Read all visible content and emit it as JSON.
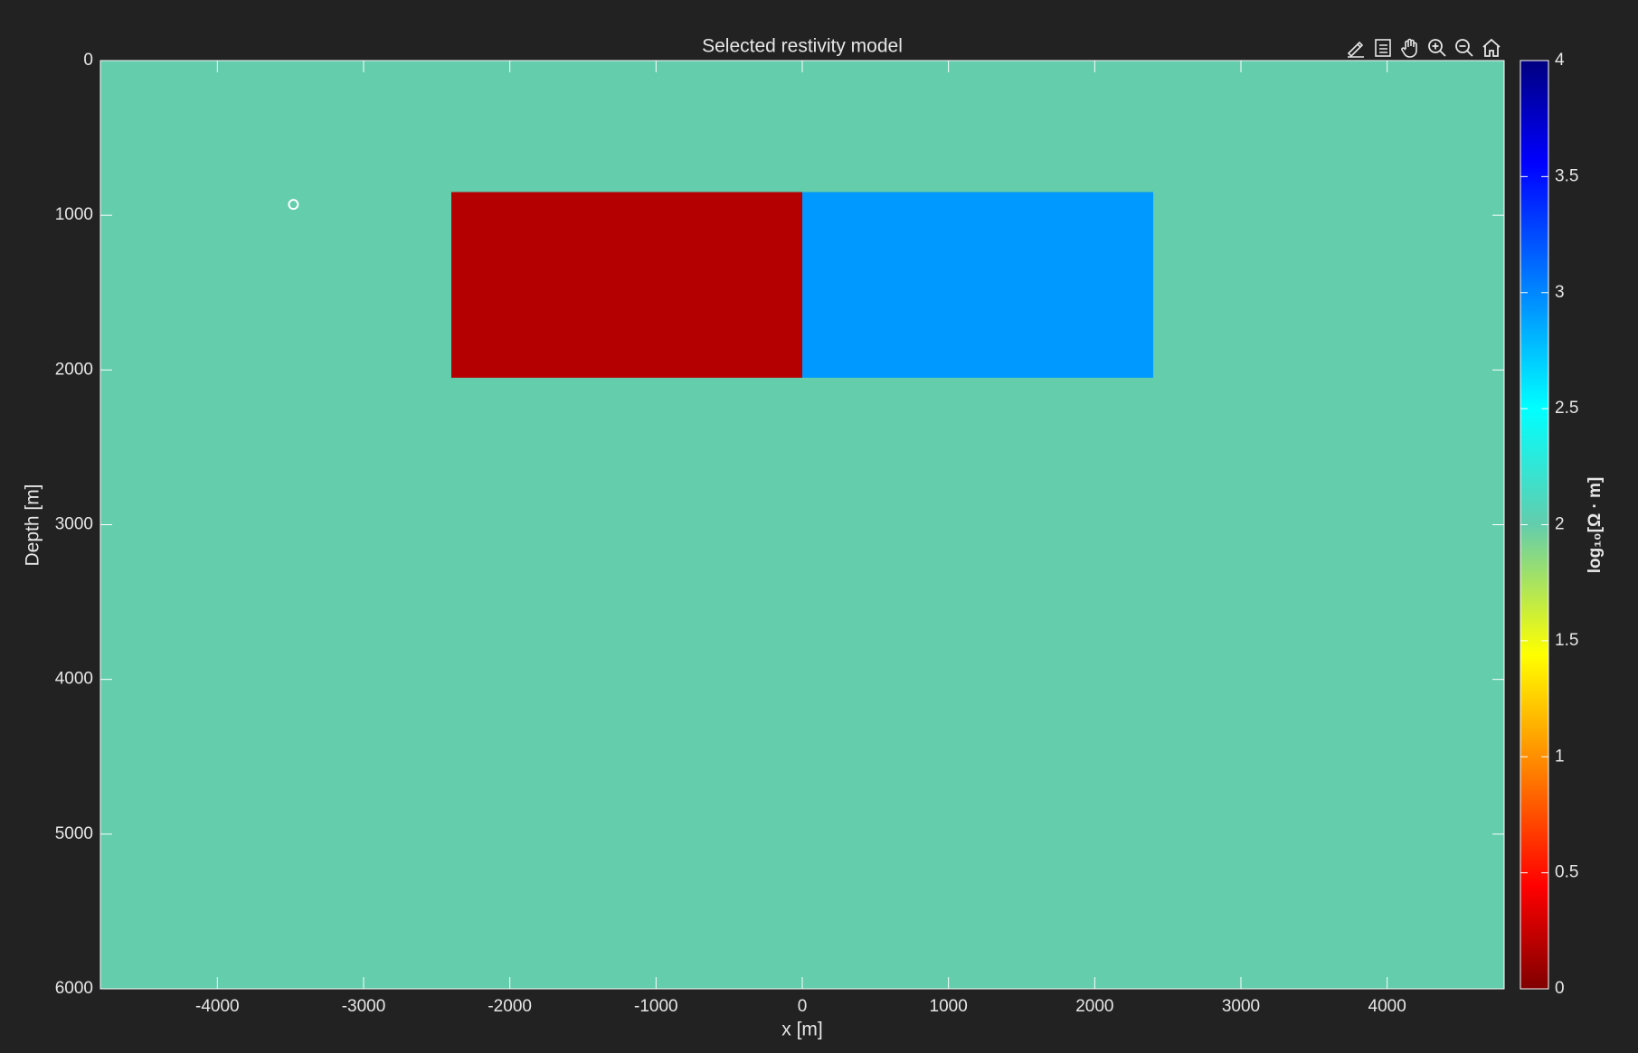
{
  "toolbar": {
    "icons": [
      "brush-edit-icon",
      "legend-toggle-icon",
      "pan-hand-icon",
      "zoom-in-icon",
      "zoom-out-icon",
      "home-icon"
    ]
  },
  "colors": {
    "background": "#222222",
    "text": "#e6e6e6",
    "axis": "#ffffff",
    "marker": "#ffffff"
  },
  "chart_data": {
    "type": "heatmap",
    "title": "Selected restivity model",
    "xlabel": "x [m]",
    "ylabel": "Depth [m]",
    "xlim": [
      -4800,
      4800
    ],
    "ylim": [
      0,
      6000
    ],
    "y_reversed": true,
    "xticks": [
      -4000,
      -3000,
      -2000,
      -1000,
      0,
      1000,
      2000,
      3000,
      4000
    ],
    "yticks": [
      0,
      1000,
      2000,
      3000,
      4000,
      5000,
      6000
    ],
    "grid": false,
    "colormap": "jet (reversed)",
    "background_value": 2,
    "background_color": "#63cdac",
    "blocks": [
      {
        "x": [
          -2400,
          0
        ],
        "depth": [
          850,
          2050
        ],
        "value": 0.1,
        "color": "#b50000"
      },
      {
        "x": [
          0,
          2400
        ],
        "depth": [
          850,
          2050
        ],
        "value": 2.85,
        "color": "#0099ff"
      }
    ],
    "markers": [
      {
        "x": -3480,
        "depth": 930
      }
    ],
    "colorbar": {
      "label": "log₁₀[Ω · m]",
      "range": [
        0,
        4
      ],
      "ticks": [
        "0",
        "0.5",
        "1",
        "1.5",
        "2",
        "2.5",
        "3",
        "3.5",
        "4"
      ]
    }
  }
}
